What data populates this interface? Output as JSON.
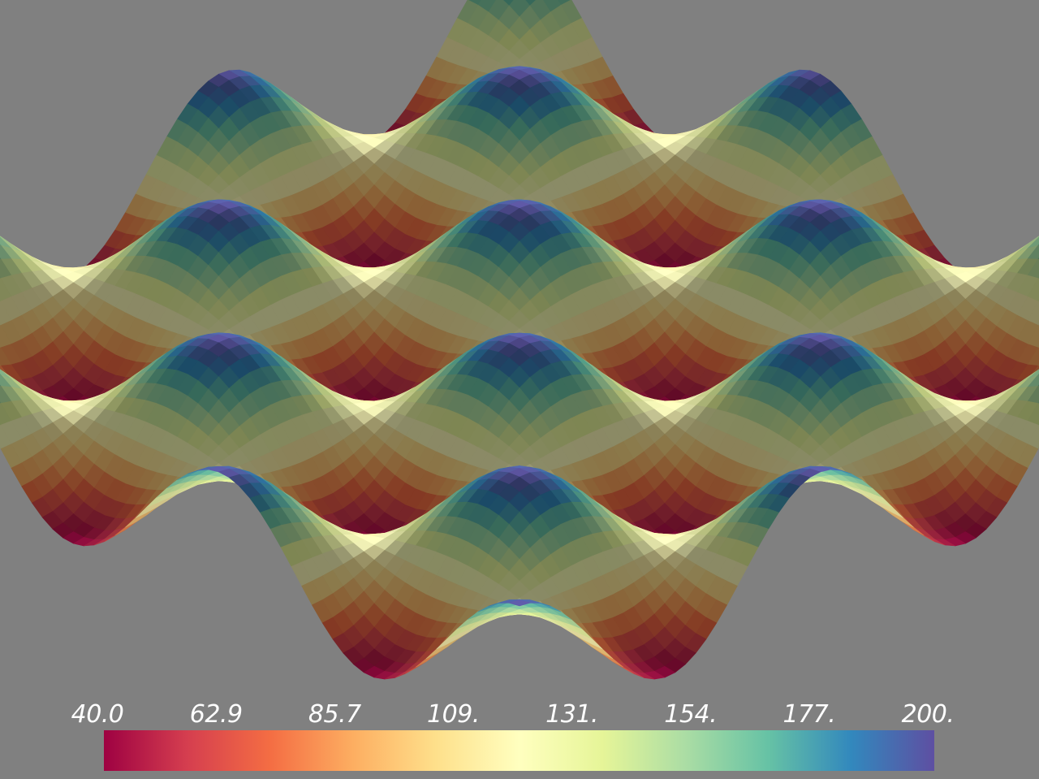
{
  "scene": {
    "background_color": "#808080",
    "render_type": "3d-surface",
    "colormap": "Spectral"
  },
  "colorbar": {
    "tick_labels": [
      "40.0",
      "62.9",
      "85.7",
      "109.",
      "131.",
      "154.",
      "177.",
      "200."
    ],
    "range": [
      40.0,
      200.0
    ],
    "colors": [
      "#9e0142",
      "#d53e4f",
      "#f46d43",
      "#fdae61",
      "#fee08b",
      "#ffffbf",
      "#e6f598",
      "#abdda4",
      "#66c2a5",
      "#3288bd",
      "#5e4fa2"
    ]
  }
}
